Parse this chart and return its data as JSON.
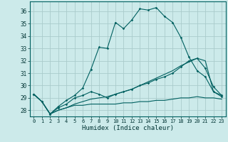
{
  "xlabel": "Humidex (Indice chaleur)",
  "background_color": "#cceaea",
  "grid_color": "#aacccc",
  "line_color": "#006060",
  "xlim": [
    -0.5,
    23.5
  ],
  "ylim": [
    27.5,
    36.8
  ],
  "xticks": [
    0,
    1,
    2,
    3,
    4,
    5,
    6,
    7,
    8,
    9,
    10,
    11,
    12,
    13,
    14,
    15,
    16,
    17,
    18,
    19,
    20,
    21,
    22,
    23
  ],
  "yticks": [
    28,
    29,
    30,
    31,
    32,
    33,
    34,
    35,
    36
  ],
  "line1": [
    29.3,
    28.7,
    27.7,
    28.3,
    28.8,
    29.2,
    29.8,
    31.3,
    33.1,
    33.0,
    35.1,
    34.6,
    35.3,
    36.2,
    36.1,
    36.3,
    35.6,
    35.1,
    33.9,
    32.3,
    31.2,
    30.7,
    29.5,
    29.1
  ],
  "line2": [
    29.3,
    28.7,
    27.7,
    28.2,
    28.5,
    29.0,
    29.2,
    29.5,
    29.3,
    29.0,
    29.3,
    29.5,
    29.7,
    30.0,
    30.2,
    30.5,
    30.7,
    31.0,
    31.5,
    32.0,
    32.2,
    31.4,
    29.9,
    29.2
  ],
  "line3": [
    29.3,
    28.7,
    27.7,
    28.0,
    28.2,
    28.4,
    28.4,
    28.5,
    28.5,
    28.5,
    28.5,
    28.6,
    28.6,
    28.7,
    28.7,
    28.8,
    28.8,
    28.9,
    29.0,
    29.0,
    29.1,
    29.0,
    29.0,
    28.9
  ],
  "line4": [
    29.3,
    28.7,
    27.7,
    28.0,
    28.2,
    28.5,
    28.7,
    28.9,
    29.0,
    29.1,
    29.3,
    29.5,
    29.7,
    30.0,
    30.3,
    30.6,
    30.9,
    31.2,
    31.6,
    31.9,
    32.2,
    32.0,
    29.5,
    29.2
  ]
}
